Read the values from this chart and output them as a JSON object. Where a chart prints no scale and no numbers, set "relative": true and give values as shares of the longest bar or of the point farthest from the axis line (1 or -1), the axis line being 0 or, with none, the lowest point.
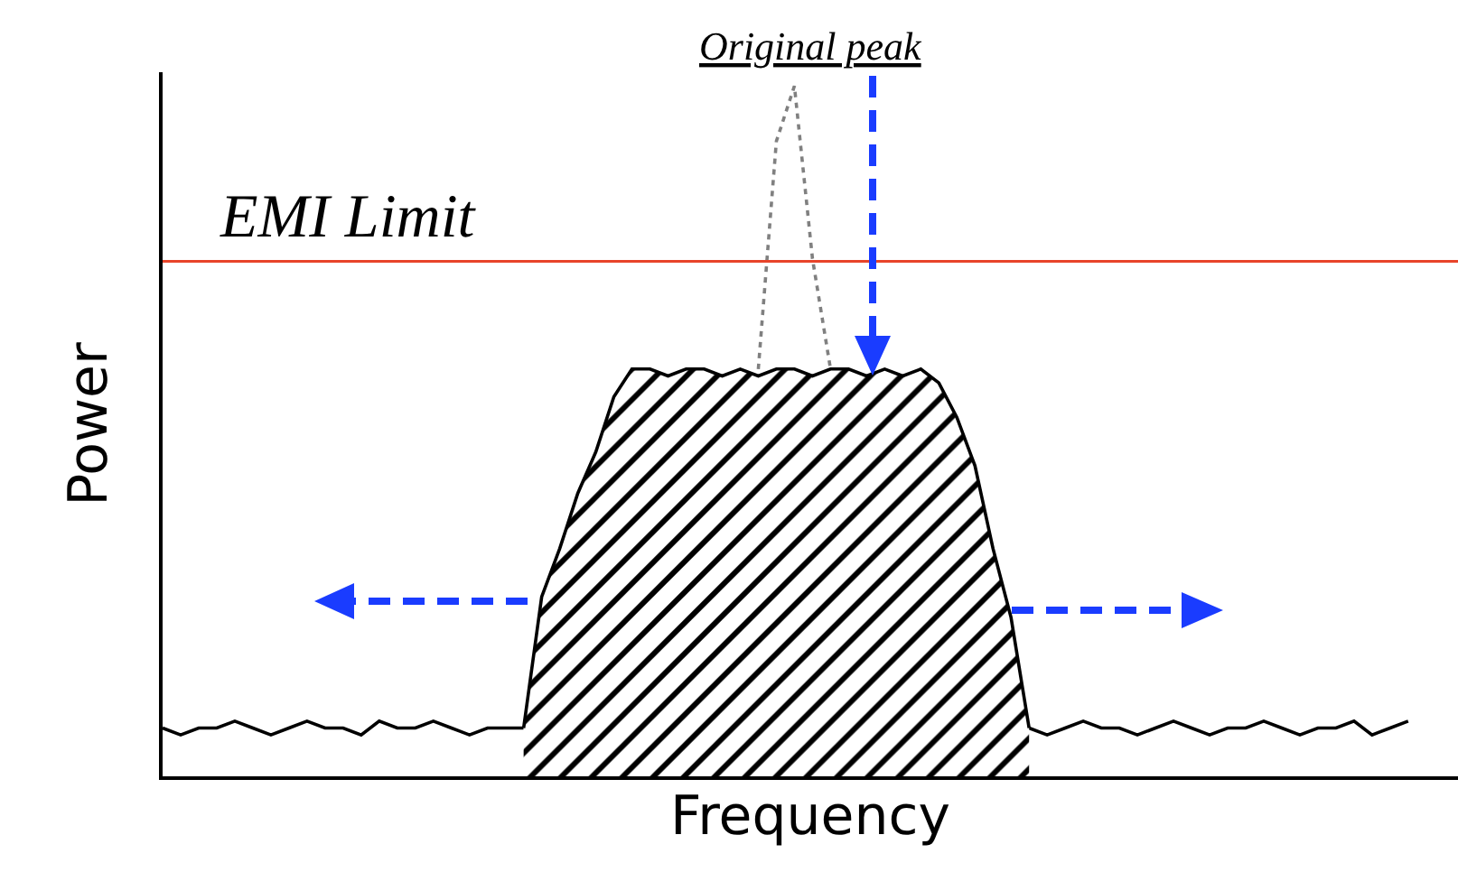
{
  "chart_data": {
    "type": "line",
    "relative": true,
    "xlabel": "Frequency",
    "ylabel": "Power",
    "categories": [
      null,
      null,
      null,
      null,
      null,
      null,
      null,
      null,
      null,
      null,
      null,
      null,
      null,
      null,
      null,
      null,
      null,
      null,
      null,
      null,
      null,
      null,
      null,
      null,
      null,
      null,
      null,
      null,
      null,
      null,
      null,
      null,
      null,
      null,
      null,
      null,
      null,
      null,
      null,
      null,
      null,
      null,
      null,
      null,
      null,
      null,
      null,
      null,
      null,
      null,
      null,
      null,
      null,
      null,
      null,
      null,
      null,
      null,
      null,
      null,
      null,
      null,
      null,
      null,
      null,
      null,
      null,
      null,
      null,
      null
    ],
    "series": [
      {
        "color": "#000000",
        "line_style": "solid",
        "values": [
          0.07,
          0.06,
          0.07,
          0.07,
          0.08,
          0.07,
          0.06,
          0.07,
          0.08,
          0.07,
          0.07,
          0.06,
          0.08,
          0.07,
          0.07,
          0.08,
          0.07,
          0.06,
          0.07,
          0.07,
          0.07,
          null,
          null,
          null,
          null,
          null,
          null,
          null,
          null,
          null,
          null,
          null,
          null,
          null,
          null,
          null,
          null,
          null,
          null,
          null,
          null,
          null,
          null,
          null,
          null,
          null,
          null,
          null,
          0.07,
          0.06,
          0.07,
          0.08,
          0.07,
          0.07,
          0.06,
          0.07,
          0.08,
          0.07,
          0.06,
          0.07,
          0.07,
          0.08,
          0.07,
          0.06,
          0.07,
          0.07,
          0.08,
          0.06,
          0.07,
          0.08
        ]
      },
      {
        "type": "area",
        "color": "#000000",
        "line_style": "solid",
        "values": [
          null,
          null,
          null,
          null,
          null,
          null,
          null,
          null,
          null,
          null,
          null,
          null,
          null,
          null,
          null,
          null,
          null,
          null,
          null,
          null,
          0.07,
          0.26,
          0.33,
          0.41,
          0.47,
          0.55,
          0.59,
          0.59,
          0.58,
          0.59,
          0.59,
          0.58,
          0.59,
          0.58,
          0.59,
          0.59,
          0.58,
          0.59,
          0.59,
          0.58,
          0.59,
          0.58,
          0.59,
          0.57,
          0.52,
          0.45,
          0.33,
          0.23,
          0.07,
          null,
          null,
          null,
          null,
          null,
          null,
          null,
          null,
          null,
          null,
          null,
          null,
          null,
          null,
          null,
          null,
          null,
          null,
          null,
          null,
          null
        ]
      },
      {
        "color": "#808080",
        "line_style": "dotted",
        "values": [
          null,
          null,
          null,
          null,
          null,
          null,
          null,
          null,
          null,
          null,
          null,
          null,
          null,
          null,
          null,
          null,
          null,
          null,
          null,
          null,
          null,
          null,
          null,
          null,
          null,
          null,
          null,
          null,
          null,
          null,
          null,
          null,
          null,
          0.59,
          0.92,
          1.0,
          0.75,
          0.59,
          null,
          null,
          null,
          null,
          null,
          null,
          null,
          null,
          null,
          null,
          null,
          null,
          null,
          null,
          null,
          null,
          null,
          null,
          null,
          null,
          null,
          null,
          null,
          null,
          null,
          null,
          null,
          null,
          null,
          null,
          null,
          null
        ]
      }
    ],
    "ref_lines": [
      {
        "axis": "y",
        "value": 0.746,
        "label": "EMI Limit",
        "color": "#e8442a"
      }
    ],
    "annotations": [
      "Original peak"
    ],
    "marker": "none",
    "grid": false
  }
}
